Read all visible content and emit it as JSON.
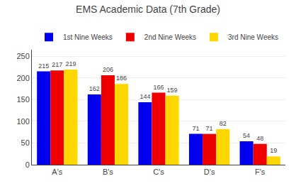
{
  "chart_data": {
    "type": "bar",
    "title": "EMS Academic Data (7th Grade)",
    "categories": [
      "A's",
      "B's",
      "C's",
      "D's",
      "F's"
    ],
    "series": [
      {
        "name": "1st Nine Weeks",
        "color": "#0000EE",
        "values": [
          215,
          162,
          144,
          71,
          54
        ]
      },
      {
        "name": "2nd Nine Weeks",
        "color": "#EE0000",
        "values": [
          217,
          206,
          166,
          71,
          48
        ]
      },
      {
        "name": "3rd Nine Weeks",
        "color": "#FFD700",
        "values": [
          219,
          186,
          159,
          82,
          19
        ]
      }
    ],
    "ylim": [
      0,
      265
    ],
    "yticks": [
      0,
      50,
      100,
      150,
      200,
      250
    ],
    "grid": true,
    "legend": "top",
    "data_labels": true
  }
}
